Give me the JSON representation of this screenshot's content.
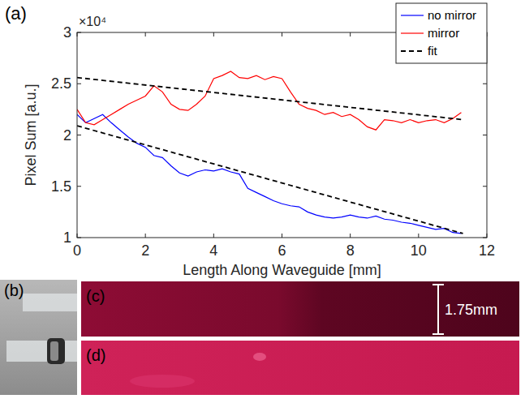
{
  "chart_data": {
    "type": "line",
    "x_label": "Length Along Waveguide [mm]",
    "y_label": "Pixel Sum [a.u.]",
    "annotations": [
      "×10⁴"
    ],
    "xlim": [
      0,
      12
    ],
    "xticks": [
      0,
      2,
      4,
      6,
      8,
      10,
      12
    ],
    "ylim": [
      1,
      3
    ],
    "yticks": [
      1,
      1.5,
      2,
      2.5,
      3
    ],
    "grid": false,
    "legend": "northeast",
    "series": [
      {
        "name": "no mirror",
        "color": "#0000ff",
        "line_style": "solid",
        "x": [
          0,
          0.25,
          0.5,
          0.75,
          1,
          1.25,
          1.5,
          1.75,
          2,
          2.25,
          2.5,
          2.75,
          3,
          3.25,
          3.5,
          3.75,
          4,
          4.25,
          4.5,
          4.75,
          5,
          5.25,
          5.5,
          5.75,
          6,
          6.25,
          6.5,
          6.75,
          7,
          7.25,
          7.5,
          7.75,
          8,
          8.25,
          8.5,
          8.75,
          9,
          9.25,
          9.5,
          9.75,
          10,
          10.25,
          10.5,
          10.75,
          11,
          11.25
        ],
        "values": [
          2.2,
          2.12,
          2.16,
          2.2,
          2.12,
          2.05,
          1.98,
          1.92,
          1.88,
          1.8,
          1.78,
          1.7,
          1.63,
          1.6,
          1.64,
          1.66,
          1.65,
          1.67,
          1.64,
          1.62,
          1.48,
          1.44,
          1.4,
          1.36,
          1.33,
          1.31,
          1.3,
          1.25,
          1.22,
          1.2,
          1.19,
          1.2,
          1.22,
          1.2,
          1.19,
          1.21,
          1.18,
          1.17,
          1.15,
          1.14,
          1.12,
          1.1,
          1.08,
          1.09,
          1.05,
          1.04
        ]
      },
      {
        "name": "mirror",
        "color": "#ff0000",
        "line_style": "solid",
        "x": [
          0,
          0.25,
          0.5,
          0.75,
          1,
          1.25,
          1.5,
          1.75,
          2,
          2.25,
          2.5,
          2.75,
          3,
          3.25,
          3.5,
          3.75,
          4,
          4.25,
          4.5,
          4.75,
          5,
          5.25,
          5.5,
          5.75,
          6,
          6.25,
          6.5,
          6.75,
          7,
          7.25,
          7.5,
          7.75,
          8,
          8.25,
          8.5,
          8.75,
          9,
          9.25,
          9.5,
          9.75,
          10,
          10.25,
          10.5,
          10.75,
          11,
          11.25
        ],
        "values": [
          2.25,
          2.12,
          2.1,
          2.15,
          2.2,
          2.25,
          2.3,
          2.34,
          2.38,
          2.48,
          2.42,
          2.3,
          2.25,
          2.24,
          2.3,
          2.38,
          2.55,
          2.58,
          2.62,
          2.56,
          2.55,
          2.58,
          2.54,
          2.57,
          2.55,
          2.42,
          2.3,
          2.26,
          2.24,
          2.2,
          2.22,
          2.18,
          2.2,
          2.15,
          2.08,
          2.05,
          2.15,
          2.14,
          2.12,
          2.15,
          2.12,
          2.14,
          2.15,
          2.12,
          2.16,
          2.22
        ]
      },
      {
        "name": "fit",
        "color": "#000000",
        "line_style": "dashed",
        "x": [
          0,
          11.3,
          11.3,
          0,
          11.3
        ],
        "values": [
          2.56,
          2.15,
          null,
          2.09,
          1.04
        ]
      }
    ]
  },
  "panels": [
    {
      "label": "(a)"
    },
    {
      "label": "(b)"
    },
    {
      "label": "(c)",
      "scale_bar": "1.75mm"
    },
    {
      "label": "(d)"
    }
  ]
}
